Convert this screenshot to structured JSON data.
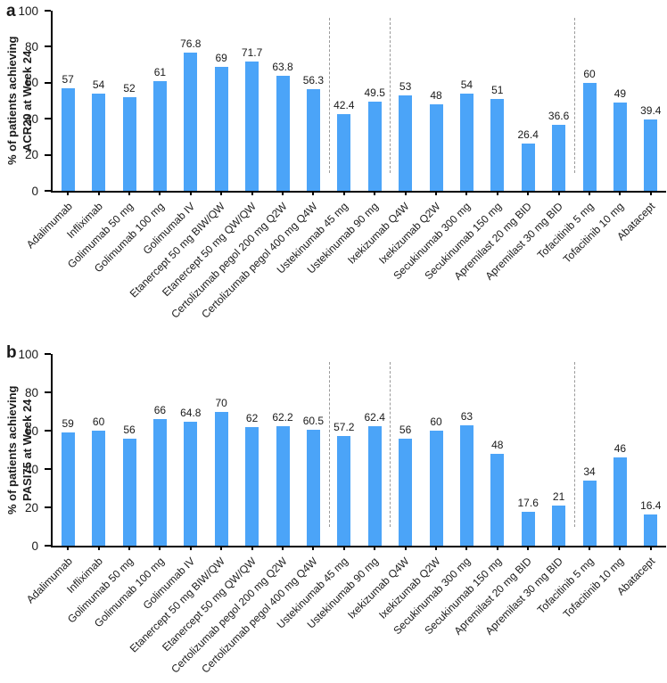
{
  "chart_data": [
    {
      "type": "bar",
      "panel_letter": "a",
      "title": "",
      "xlabel": "",
      "ylabel": "% of patients achieving ACR20 at Week 24",
      "ylabel_lines": [
        "% of patients achieving",
        "ACR20 at Week 24"
      ],
      "ylim": [
        0,
        100
      ],
      "yticks": [
        0,
        20,
        40,
        60,
        80,
        100
      ],
      "grid": false,
      "legend_position": "none",
      "bar_color": "#4BA4F8",
      "separator_color": "#9a9a9a",
      "separators_after_index": [
        8,
        10,
        16
      ],
      "categories": [
        "Adalimumab",
        "Infliximab",
        "Golimumab 50 mg",
        "Golimumab 100 mg",
        "Golimumab IV",
        "Etanercept 50 mg BIW/QW",
        "Etanercept 50 mg QW/QW",
        "Certolizumab pegol 200 mg Q2W",
        "Certolizumab pegol 400 mg Q4W",
        "Ustekinumab 45 mg",
        "Ustekinumab 90 mg",
        "Ixekizumab Q4W",
        "Ixekizumab Q2W",
        "Secukinumab 300 mg",
        "Secukinumab 150 mg",
        "Apremilast 20 mg BID",
        "Apremilast 30 mg BID",
        "Tofacitinib 5 mg",
        "Tofacitinib 10 mg",
        "Abatacept"
      ],
      "values": [
        57,
        54,
        52,
        61,
        76.8,
        69,
        71.7,
        63.8,
        56.3,
        42.4,
        49.5,
        53,
        48,
        54,
        51,
        26.4,
        36.6,
        60,
        49,
        39.4
      ]
    },
    {
      "type": "bar",
      "panel_letter": "b",
      "title": "",
      "xlabel": "",
      "ylabel": "% of patients achieving PASI75 at Week 24",
      "ylabel_lines": [
        "% of patients achieving",
        "PASI75 at Week 24"
      ],
      "ylim": [
        0,
        100
      ],
      "yticks": [
        0,
        20,
        40,
        60,
        80,
        100
      ],
      "grid": false,
      "legend_position": "none",
      "bar_color": "#4BA4F8",
      "separator_color": "#9a9a9a",
      "separators_after_index": [
        8,
        10,
        16
      ],
      "categories": [
        "Adalimumab",
        "Infliximab",
        "Golimumab 50 mg",
        "Golimumab 100 mg",
        "Golimumab IV",
        "Etanercept 50 mg BIW/QW",
        "Etanercept 50 mg QW/QW",
        "Certolizumab pegol 200 mg Q2W",
        "Certolizumab pegol 400 mg Q4W",
        "Ustekinumab 45 mg",
        "Ustekinumab 90 mg",
        "Ixekizumab Q4W",
        "Ixekizumab Q2W",
        "Secukinumab 300 mg",
        "Secukinumab 150 mg",
        "Apremilast 20 mg BID",
        "Apremilast 30 mg BID",
        "Tofacitinib 5 mg",
        "Tofacitinib 10 mg",
        "Abatacept"
      ],
      "values": [
        59,
        60,
        56,
        66,
        64.8,
        70,
        62,
        62.2,
        60.5,
        57.2,
        62.4,
        56,
        60,
        63,
        48,
        17.6,
        21,
        34,
        46,
        16.4
      ]
    }
  ]
}
